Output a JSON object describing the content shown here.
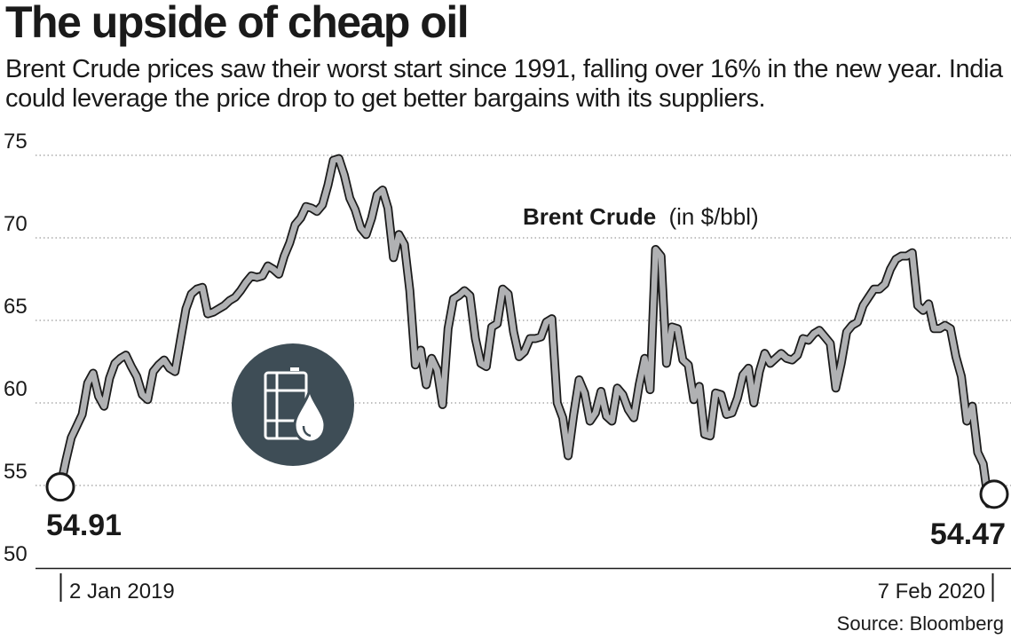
{
  "title": "The upside of cheap oil",
  "subtitle": "Brent Crude prices saw their worst start since 1991, falling over 16% in the new year. India could leverage the price drop to get better bargains with its suppliers.",
  "source": "Source: Bloomberg",
  "colors": {
    "line": "#b0b1b3",
    "line_outline": "#1a1a1a",
    "icon_circle": "#3e4d56",
    "grid": "#9a9a9a"
  },
  "chart_data": {
    "type": "line",
    "series_label": "Brent Crude",
    "series_unit": "(in $/bbl)",
    "ylim": [
      50,
      75
    ],
    "yticks": [
      75,
      70,
      65,
      60,
      55,
      50
    ],
    "x_start_label": "2 Jan 2019",
    "x_end_label": "7 Feb 2020",
    "start_value": "54.91",
    "end_value": "54.47",
    "grid": "horizontal dotted",
    "icon": "oil-barrel-drop-icon",
    "values": [
      54.91,
      56.5,
      57.9,
      58.6,
      59.3,
      61.2,
      61.8,
      60.4,
      59.8,
      61.5,
      62.4,
      62.7,
      62.9,
      62.2,
      61.6,
      60.5,
      60.2,
      61.9,
      62.3,
      62.6,
      62.1,
      61.9,
      63.8,
      65.7,
      66.6,
      66.9,
      67.0,
      65.4,
      65.5,
      65.7,
      65.9,
      66.2,
      66.4,
      66.8,
      67.3,
      67.7,
      67.6,
      67.7,
      68.3,
      68.1,
      67.8,
      68.9,
      69.7,
      70.8,
      71.2,
      71.9,
      71.8,
      71.6,
      72.0,
      73.2,
      74.7,
      74.8,
      73.8,
      72.4,
      71.7,
      70.6,
      70.2,
      71.2,
      72.6,
      72.9,
      71.8,
      68.8,
      70.2,
      69.6,
      66.8,
      62.3,
      63.2,
      61.1,
      62.7,
      62.0,
      59.9,
      64.5,
      66.3,
      66.5,
      66.8,
      66.5,
      63.9,
      62.4,
      62.2,
      64.6,
      64.8,
      66.9,
      66.6,
      64.3,
      62.8,
      63.1,
      63.9,
      63.9,
      64.0,
      64.9,
      65.1,
      60.0,
      59.1,
      56.8,
      59.3,
      61.4,
      60.6,
      58.9,
      59.4,
      60.7,
      59.2,
      58.9,
      60.9,
      60.5,
      59.6,
      59.1,
      61.1,
      62.7,
      60.8,
      69.3,
      68.9,
      62.4,
      64.6,
      64.5,
      62.6,
      62.3,
      60.2,
      61.0,
      58.1,
      58.0,
      60.6,
      60.5,
      59.3,
      59.4,
      60.3,
      61.7,
      62.1,
      60.0,
      61.9,
      63.0,
      62.4,
      62.7,
      63.0,
      62.7,
      62.6,
      62.9,
      63.9,
      63.8,
      64.2,
      64.4,
      64.0,
      63.6,
      60.9,
      62.4,
      64.3,
      64.7,
      64.9,
      65.9,
      66.4,
      66.9,
      66.9,
      67.2,
      68.1,
      68.7,
      68.9,
      68.9,
      69.1,
      65.9,
      65.6,
      66.0,
      64.5,
      64.5,
      64.7,
      64.5,
      62.8,
      61.6,
      58.9,
      59.8,
      57.0,
      56.3,
      53.9,
      54.47
    ]
  }
}
